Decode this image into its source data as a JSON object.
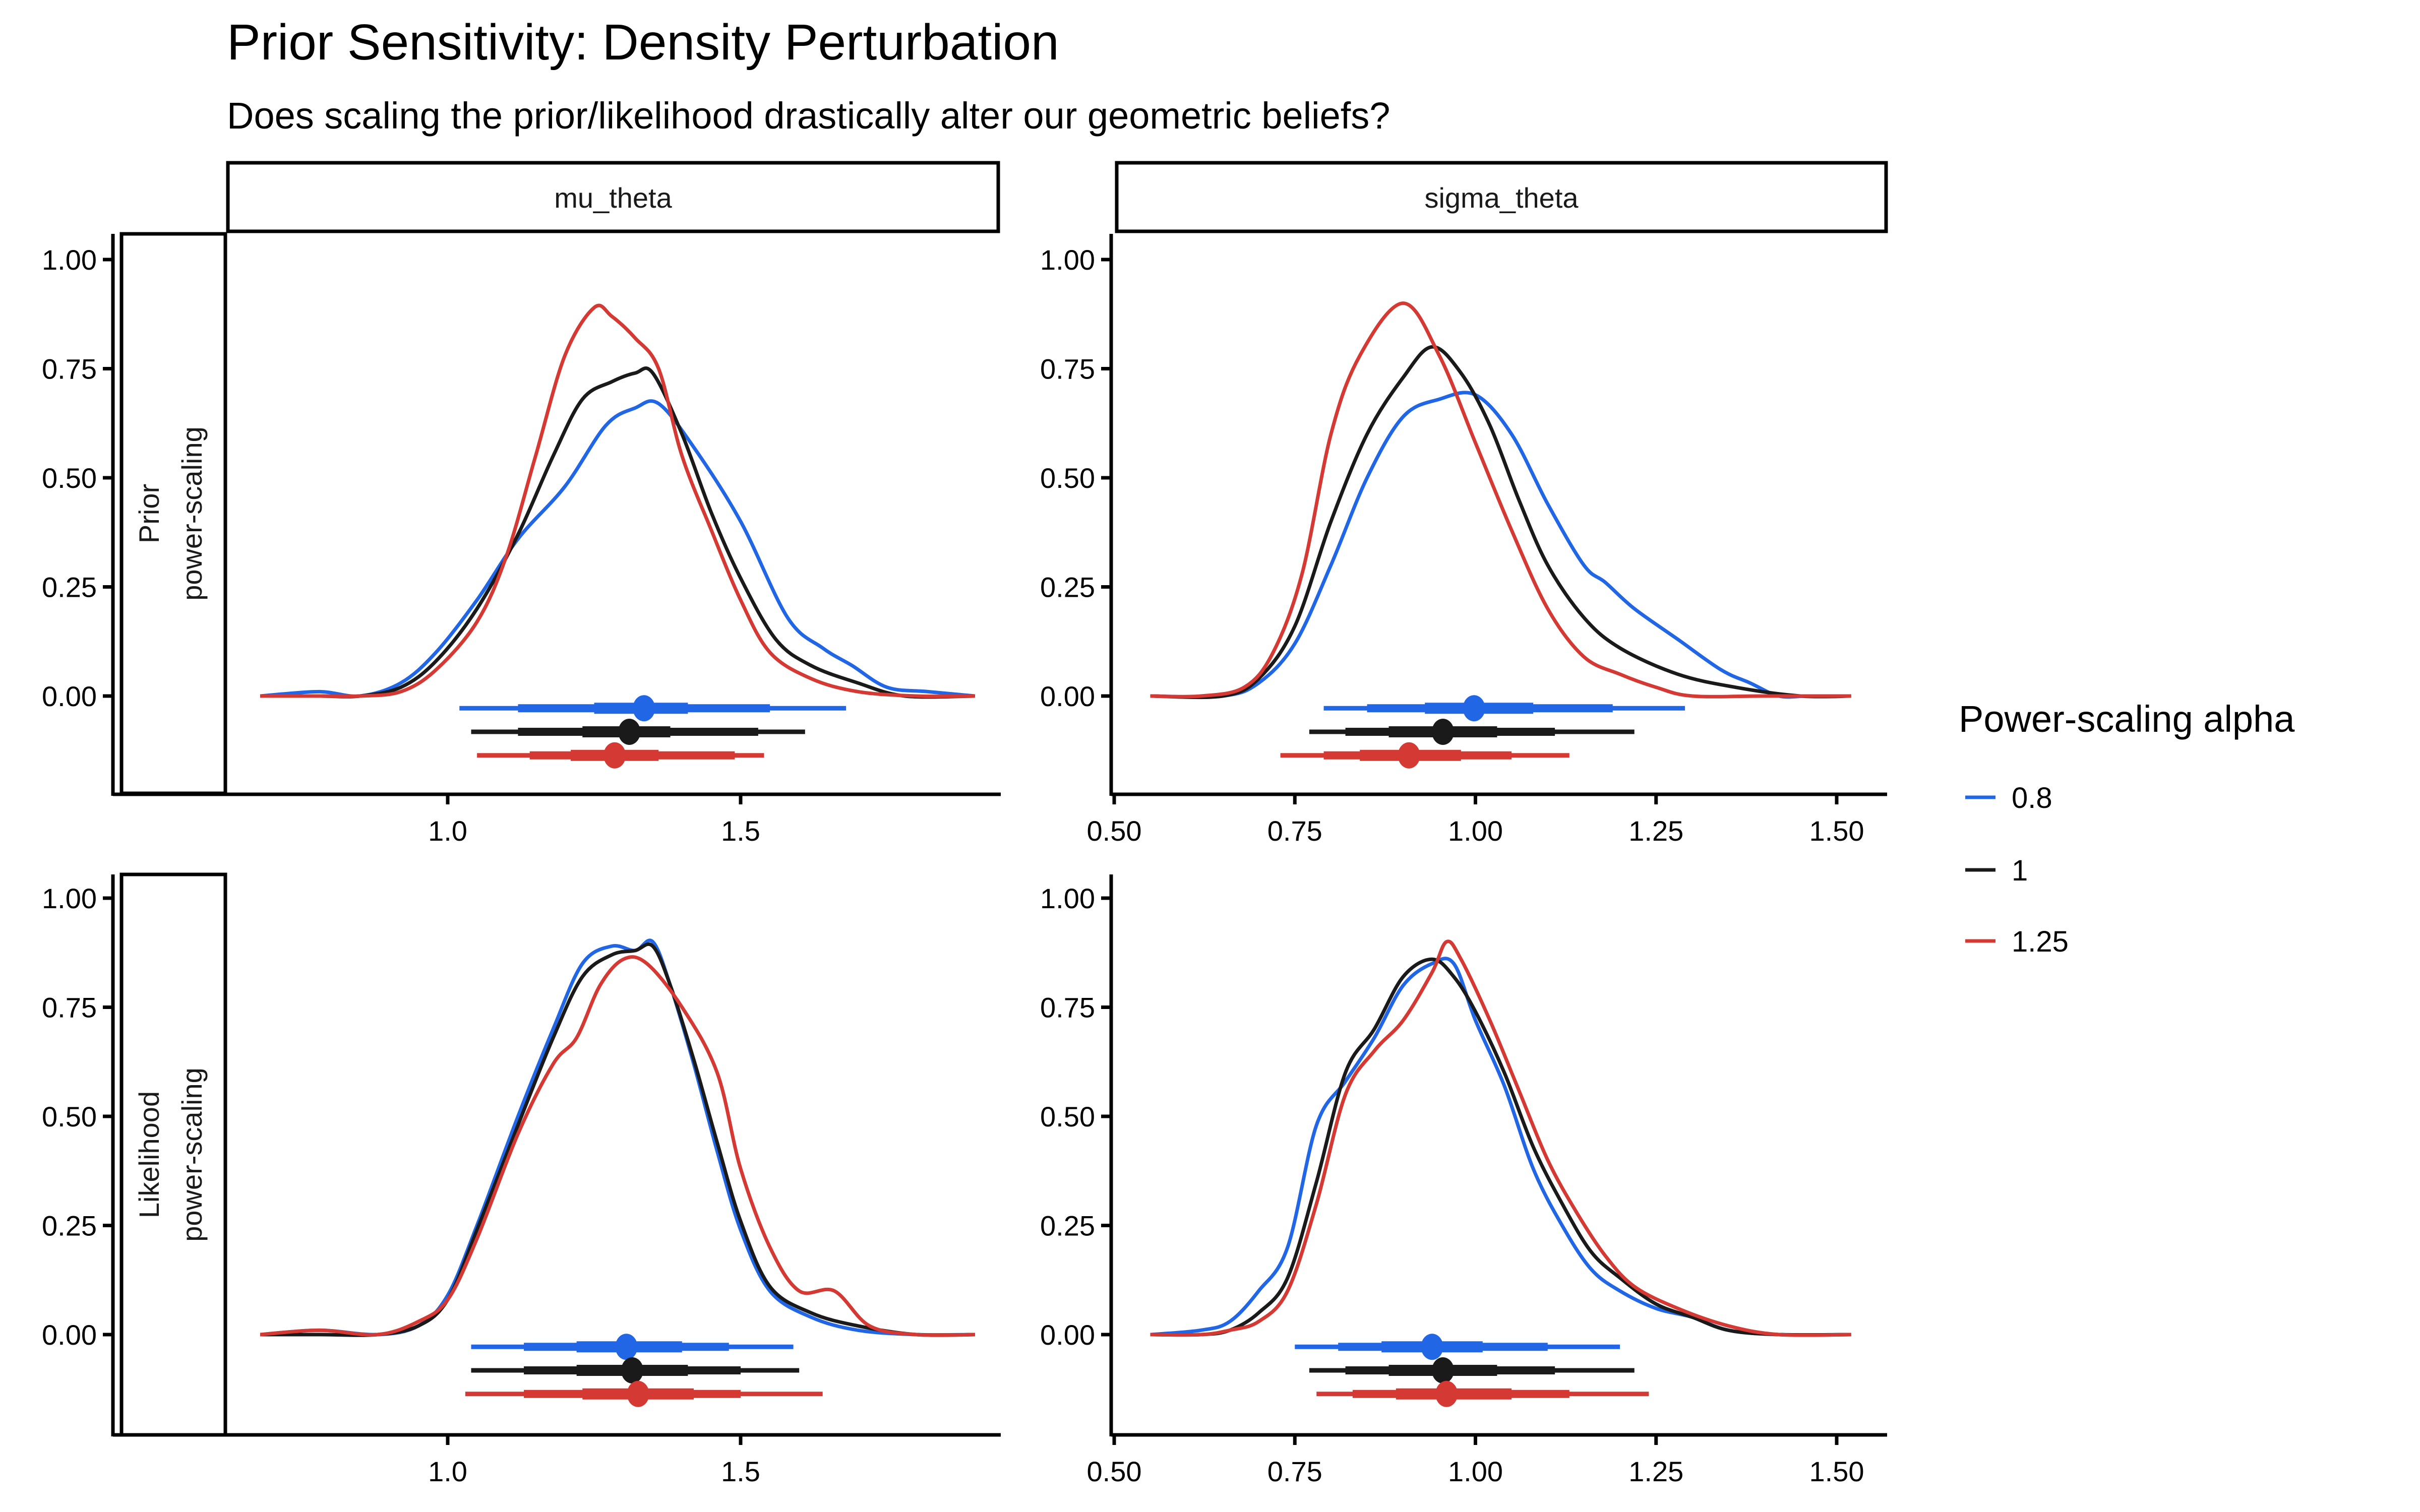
{
  "chart_data": {
    "type": "line",
    "title": "Prior Sensitivity: Density Perturbation",
    "subtitle": "Does scaling the prior/likelihood drastically alter our geometric beliefs?",
    "legend": {
      "title": "Power-scaling alpha",
      "placement": "right",
      "entries": [
        {
          "label": "0.8",
          "color": "#2166e5"
        },
        {
          "label": "1",
          "color": "#1a1a1a"
        },
        {
          "label": "1.25",
          "color": "#d43a33"
        }
      ]
    },
    "columns": [
      "mu_theta",
      "sigma_theta"
    ],
    "rows": [
      "Prior\npower-scaling",
      "Likelihood\npower-scaling"
    ],
    "row_labels": [
      [
        "Prior",
        "power-scaling"
      ],
      [
        "Likelihood",
        "power-scaling"
      ]
    ],
    "ylim": [
      -0.22,
      1.05
    ],
    "yticks": [
      0,
      0.25,
      0.5,
      0.75,
      1.0
    ],
    "ytick_labels": [
      "0.00",
      "0.25",
      "0.50",
      "0.75",
      "1.00"
    ],
    "xaxes": {
      "mu_theta": {
        "xlim": [
          0.62,
          1.94
        ],
        "ticks": [
          1.0,
          1.5
        ],
        "tick_labels": [
          "1.0",
          "1.5"
        ]
      },
      "sigma_theta": {
        "xlim": [
          0.5,
          1.57
        ],
        "ticks": [
          0.5,
          0.75,
          1.0,
          1.25,
          1.5
        ],
        "tick_labels": [
          "0.50",
          "0.75",
          "1.00",
          "1.25",
          "1.50"
        ]
      }
    },
    "panels": [
      {
        "row": 0,
        "col": "mu_theta",
        "series": [
          {
            "name": "0.8",
            "x": [
              0.68,
              0.78,
              0.85,
              0.92,
              0.98,
              1.05,
              1.12,
              1.2,
              1.27,
              1.32,
              1.36,
              1.42,
              1.5,
              1.58,
              1.64,
              1.69,
              1.75,
              1.82,
              1.9
            ],
            "y": [
              0,
              0.01,
              0.0,
              0.03,
              0.1,
              0.22,
              0.36,
              0.48,
              0.62,
              0.66,
              0.67,
              0.57,
              0.4,
              0.18,
              0.11,
              0.07,
              0.02,
              0.01,
              0
            ]
          },
          {
            "name": "1",
            "x": [
              0.68,
              0.78,
              0.85,
              0.92,
              0.98,
              1.05,
              1.12,
              1.18,
              1.23,
              1.28,
              1.32,
              1.35,
              1.4,
              1.45,
              1.5,
              1.56,
              1.62,
              1.7,
              1.78,
              1.9
            ],
            "y": [
              0,
              0.0,
              0.0,
              0.02,
              0.08,
              0.2,
              0.37,
              0.55,
              0.68,
              0.72,
              0.74,
              0.74,
              0.6,
              0.42,
              0.27,
              0.13,
              0.07,
              0.03,
              0.0,
              0
            ]
          },
          {
            "name": "1.25",
            "x": [
              0.68,
              0.78,
              0.85,
              0.92,
              0.98,
              1.05,
              1.1,
              1.15,
              1.2,
              1.25,
              1.28,
              1.32,
              1.36,
              1.4,
              1.45,
              1.5,
              1.55,
              1.62,
              1.7,
              1.8,
              1.9
            ],
            "y": [
              0,
              0.0,
              0.0,
              0.01,
              0.06,
              0.17,
              0.32,
              0.55,
              0.78,
              0.89,
              0.87,
              0.82,
              0.75,
              0.55,
              0.38,
              0.22,
              0.1,
              0.04,
              0.01,
              0.0,
              0
            ]
          }
        ],
        "intervals": [
          {
            "name": "0.8",
            "point": 1.335,
            "inner": [
              1.25,
              1.41
            ],
            "mid": [
              1.12,
              1.55
            ],
            "outer": [
              1.02,
              1.68
            ]
          },
          {
            "name": "1",
            "point": 1.31,
            "inner": [
              1.23,
              1.38
            ],
            "mid": [
              1.12,
              1.53
            ],
            "outer": [
              1.04,
              1.61
            ]
          },
          {
            "name": "1.25",
            "point": 1.285,
            "inner": [
              1.21,
              1.36
            ],
            "mid": [
              1.14,
              1.49
            ],
            "outer": [
              1.05,
              1.54
            ]
          }
        ]
      },
      {
        "row": 0,
        "col": "sigma_theta",
        "series": [
          {
            "name": "0.8",
            "x": [
              0.55,
              0.65,
              0.7,
              0.75,
              0.8,
              0.85,
              0.9,
              0.95,
              1.0,
              1.05,
              1.1,
              1.15,
              1.18,
              1.22,
              1.28,
              1.34,
              1.38,
              1.42,
              1.46,
              1.52
            ],
            "y": [
              0,
              0.0,
              0.03,
              0.12,
              0.3,
              0.5,
              0.64,
              0.68,
              0.69,
              0.6,
              0.44,
              0.3,
              0.26,
              0.2,
              0.13,
              0.06,
              0.03,
              0.0,
              0.0,
              0
            ]
          },
          {
            "name": "1",
            "x": [
              0.55,
              0.65,
              0.7,
              0.75,
              0.8,
              0.85,
              0.9,
              0.94,
              0.98,
              1.02,
              1.06,
              1.1,
              1.15,
              1.2,
              1.28,
              1.36,
              1.45,
              1.52
            ],
            "y": [
              0,
              0.0,
              0.04,
              0.16,
              0.4,
              0.6,
              0.73,
              0.8,
              0.74,
              0.62,
              0.45,
              0.3,
              0.18,
              0.11,
              0.05,
              0.02,
              0.0,
              0
            ]
          },
          {
            "name": "1.25",
            "x": [
              0.55,
              0.62,
              0.68,
              0.72,
              0.76,
              0.8,
              0.84,
              0.9,
              0.95,
              1.0,
              1.05,
              1.1,
              1.15,
              1.2,
              1.25,
              1.3,
              1.4,
              1.52
            ],
            "y": [
              0,
              0.0,
              0.02,
              0.1,
              0.28,
              0.6,
              0.78,
              0.9,
              0.78,
              0.58,
              0.38,
              0.2,
              0.09,
              0.05,
              0.02,
              0.0,
              0.0,
              0
            ]
          }
        ],
        "intervals": [
          {
            "name": "0.8",
            "point": 0.998,
            "inner": [
              0.93,
              1.08
            ],
            "mid": [
              0.85,
              1.19
            ],
            "outer": [
              0.79,
              1.29
            ]
          },
          {
            "name": "1",
            "point": 0.955,
            "inner": [
              0.88,
              1.03
            ],
            "mid": [
              0.82,
              1.11
            ],
            "outer": [
              0.77,
              1.22
            ]
          },
          {
            "name": "1.25",
            "point": 0.908,
            "inner": [
              0.84,
              0.98
            ],
            "mid": [
              0.79,
              1.05
            ],
            "outer": [
              0.73,
              1.13
            ]
          }
        ]
      },
      {
        "row": 1,
        "col": "mu_theta",
        "series": [
          {
            "name": "0.8",
            "x": [
              0.68,
              0.78,
              0.88,
              0.95,
              1.0,
              1.05,
              1.12,
              1.18,
              1.23,
              1.28,
              1.32,
              1.35,
              1.38,
              1.42,
              1.46,
              1.5,
              1.55,
              1.62,
              1.7,
              1.8,
              1.9
            ],
            "y": [
              0,
              0.01,
              0.0,
              0.02,
              0.09,
              0.25,
              0.5,
              0.7,
              0.85,
              0.89,
              0.88,
              0.9,
              0.8,
              0.62,
              0.42,
              0.24,
              0.1,
              0.04,
              0.01,
              0.0,
              0
            ]
          },
          {
            "name": "1",
            "x": [
              0.68,
              0.78,
              0.88,
              0.95,
              1.0,
              1.05,
              1.12,
              1.18,
              1.23,
              1.28,
              1.32,
              1.35,
              1.38,
              1.42,
              1.46,
              1.5,
              1.55,
              1.62,
              1.7,
              1.8,
              1.9
            ],
            "y": [
              0,
              0.0,
              0.0,
              0.02,
              0.08,
              0.24,
              0.48,
              0.68,
              0.82,
              0.87,
              0.88,
              0.89,
              0.8,
              0.63,
              0.44,
              0.26,
              0.11,
              0.05,
              0.02,
              0.0,
              0
            ]
          },
          {
            "name": "1.25",
            "x": [
              0.68,
              0.78,
              0.88,
              0.95,
              1.0,
              1.05,
              1.12,
              1.18,
              1.22,
              1.26,
              1.3,
              1.34,
              1.4,
              1.46,
              1.5,
              1.55,
              1.6,
              1.66,
              1.72,
              1.8,
              1.9
            ],
            "y": [
              0,
              0.01,
              0.0,
              0.03,
              0.08,
              0.22,
              0.46,
              0.62,
              0.68,
              0.8,
              0.86,
              0.85,
              0.75,
              0.6,
              0.38,
              0.2,
              0.1,
              0.1,
              0.02,
              0.0,
              0
            ]
          }
        ],
        "intervals": [
          {
            "name": "0.8",
            "point": 1.305,
            "inner": [
              1.22,
              1.4
            ],
            "mid": [
              1.13,
              1.48
            ],
            "outer": [
              1.04,
              1.59
            ]
          },
          {
            "name": "1",
            "point": 1.315,
            "inner": [
              1.22,
              1.41
            ],
            "mid": [
              1.13,
              1.5
            ],
            "outer": [
              1.04,
              1.6
            ]
          },
          {
            "name": "1.25",
            "point": 1.325,
            "inner": [
              1.23,
              1.42
            ],
            "mid": [
              1.13,
              1.5
            ],
            "outer": [
              1.03,
              1.64
            ]
          }
        ]
      },
      {
        "row": 1,
        "col": "sigma_theta",
        "series": [
          {
            "name": "0.8",
            "x": [
              0.55,
              0.62,
              0.66,
              0.7,
              0.74,
              0.78,
              0.82,
              0.86,
              0.9,
              0.94,
              0.97,
              1.0,
              1.04,
              1.08,
              1.12,
              1.16,
              1.2,
              1.25,
              1.3,
              1.35,
              1.42,
              1.52
            ],
            "y": [
              0,
              0.01,
              0.03,
              0.1,
              0.2,
              0.48,
              0.58,
              0.68,
              0.8,
              0.85,
              0.85,
              0.72,
              0.57,
              0.38,
              0.25,
              0.15,
              0.1,
              0.06,
              0.04,
              0.01,
              0.0,
              0
            ]
          },
          {
            "name": "1",
            "x": [
              0.55,
              0.62,
              0.66,
              0.7,
              0.74,
              0.78,
              0.82,
              0.86,
              0.9,
              0.94,
              0.97,
              1.0,
              1.04,
              1.08,
              1.12,
              1.16,
              1.2,
              1.25,
              1.3,
              1.35,
              1.42,
              1.52
            ],
            "y": [
              0,
              0.0,
              0.01,
              0.05,
              0.13,
              0.35,
              0.6,
              0.7,
              0.82,
              0.86,
              0.82,
              0.74,
              0.6,
              0.43,
              0.3,
              0.19,
              0.13,
              0.07,
              0.04,
              0.01,
              0.0,
              0
            ]
          },
          {
            "name": "1.25",
            "x": [
              0.55,
              0.62,
              0.66,
              0.7,
              0.74,
              0.78,
              0.82,
              0.86,
              0.9,
              0.94,
              0.96,
              0.98,
              1.02,
              1.06,
              1.1,
              1.14,
              1.18,
              1.22,
              1.28,
              1.35,
              1.42,
              1.52
            ],
            "y": [
              0,
              0.0,
              0.01,
              0.03,
              0.1,
              0.3,
              0.55,
              0.65,
              0.72,
              0.83,
              0.9,
              0.86,
              0.72,
              0.56,
              0.4,
              0.28,
              0.18,
              0.11,
              0.06,
              0.02,
              0.0,
              0
            ]
          }
        ],
        "intervals": [
          {
            "name": "0.8",
            "point": 0.94,
            "inner": [
              0.87,
              1.01
            ],
            "mid": [
              0.81,
              1.1
            ],
            "outer": [
              0.75,
              1.2
            ]
          },
          {
            "name": "1",
            "point": 0.955,
            "inner": [
              0.88,
              1.03
            ],
            "mid": [
              0.82,
              1.11
            ],
            "outer": [
              0.77,
              1.22
            ]
          },
          {
            "name": "1.25",
            "point": 0.96,
            "inner": [
              0.89,
              1.05
            ],
            "mid": [
              0.83,
              1.13
            ],
            "outer": [
              0.78,
              1.24
            ]
          }
        ]
      }
    ]
  }
}
